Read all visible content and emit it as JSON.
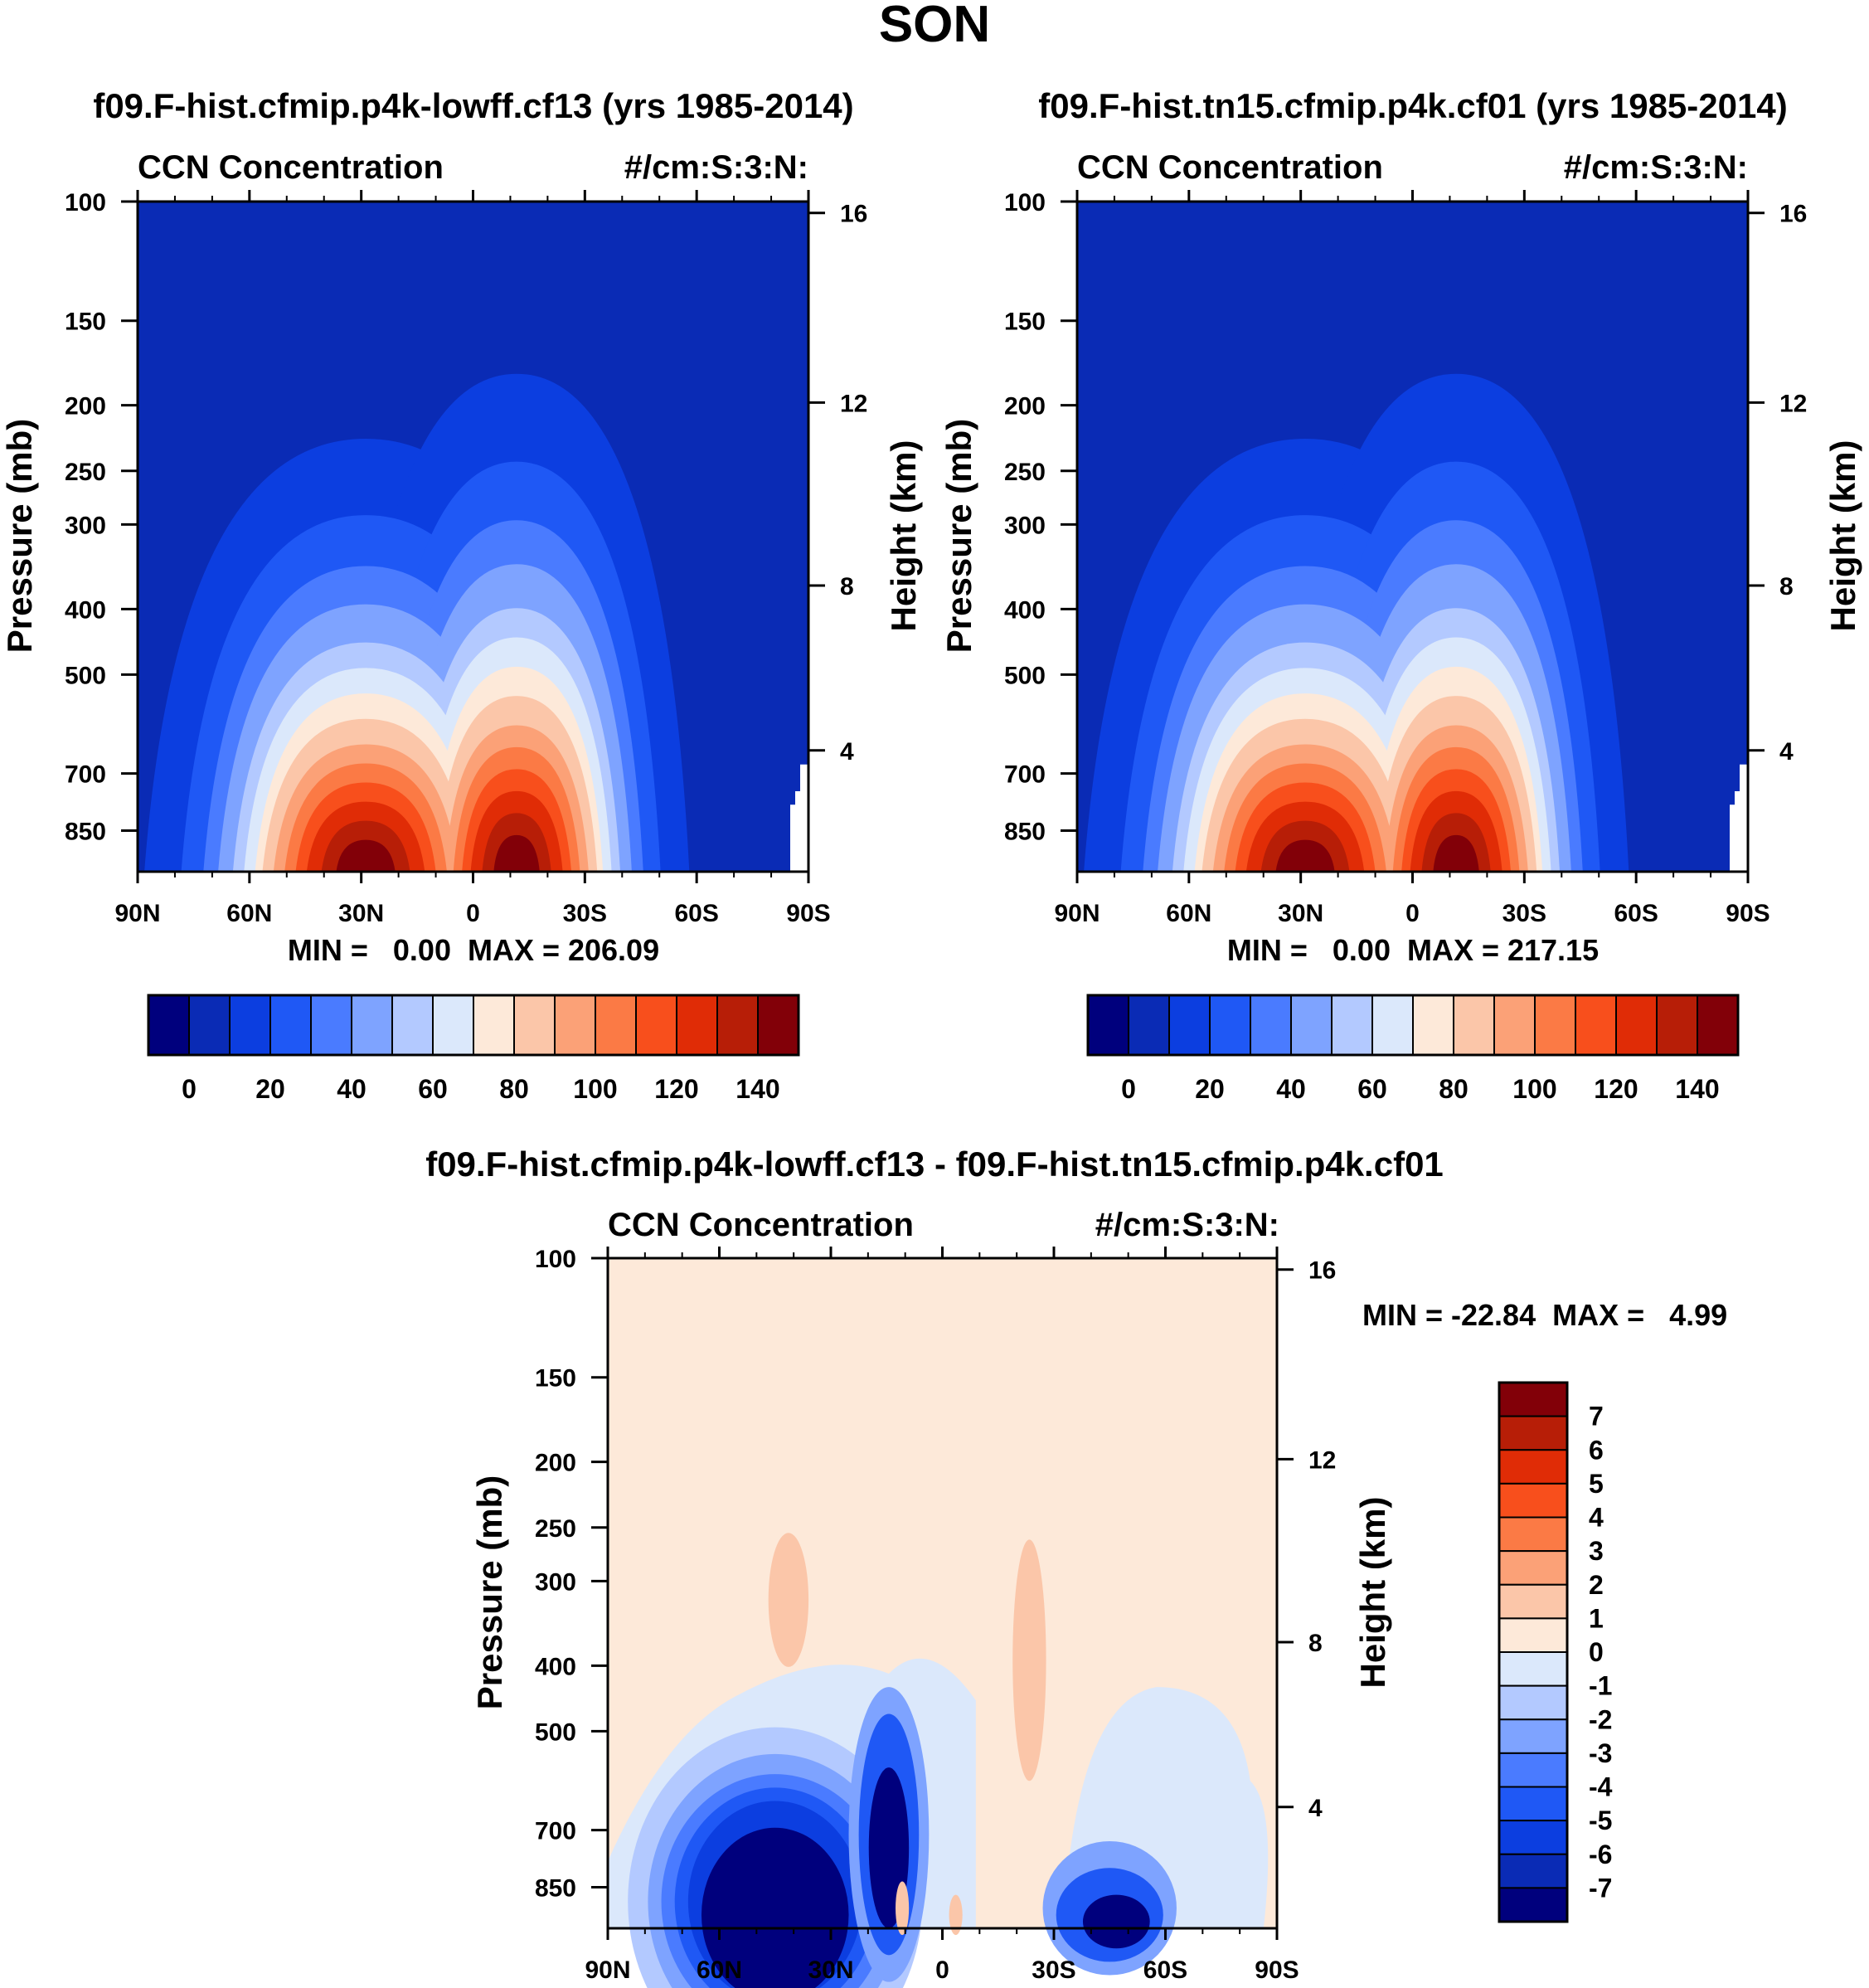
{
  "figure_title": "SON",
  "colors": {
    "fill_low": "#0a2bb5",
    "fill_bg_diff": "#fde9d9",
    "frame": "#000000"
  },
  "panels": [
    {
      "title": "f09.F-hist.cfmip.p4k-lowff.cf13 (yrs 1985-2014)",
      "left_string": "CCN Concentration",
      "right_string": "#/cm:S:3:N:",
      "stats": "MIN =   0.00  MAX = 206.09",
      "ylabel": "Pressure (mb)",
      "ylabel_right": "Height (km)"
    },
    {
      "title": "f09.F-hist.tn15.cfmip.p4k.cf01 (yrs 1985-2014)",
      "left_string": "CCN Concentration",
      "right_string": "#/cm:S:3:N:",
      "stats": "MIN =   0.00  MAX = 217.15",
      "ylabel": "Pressure (mb)",
      "ylabel_right": "Height (km)"
    },
    {
      "title": "f09.F-hist.cfmip.p4k-lowff.cf13 - f09.F-hist.tn15.cfmip.p4k.cf01",
      "left_string": "CCN Concentration",
      "right_string": "#/cm:S:3:N:",
      "stats": "MIN = -22.84  MAX =   4.99",
      "ylabel": "Pressure (mb)",
      "ylabel_right": "Height (km)"
    }
  ],
  "chart_data": [
    {
      "type": "contour",
      "panel": 0,
      "x_ticks": [
        "90N",
        "60N",
        "30N",
        "0",
        "30S",
        "60S",
        "90S"
      ],
      "y_ticks_pressure": [
        100,
        150,
        200,
        250,
        300,
        400,
        500,
        700,
        850
      ],
      "y_ticks_height_km": [
        16,
        12,
        8,
        4
      ],
      "y_scale": "log pressure",
      "min": 0.0,
      "max": 206.09,
      "colorbar": {
        "levels": [
          0,
          10,
          20,
          30,
          40,
          50,
          60,
          70,
          80,
          90,
          100,
          110,
          120,
          130,
          140
        ],
        "labels": [
          "0",
          "20",
          "40",
          "60",
          "80",
          "100",
          "120",
          "140"
        ],
        "colors": [
          "#00007d",
          "#0a2bb5",
          "#0c3ee0",
          "#1f58f5",
          "#4a7bff",
          "#7ea3ff",
          "#b3c9ff",
          "#dbe8fb",
          "#fde9d9",
          "#fbc6a9",
          "#fba177",
          "#fb7a45",
          "#f84f1c",
          "#e02c06",
          "#b71e07",
          "#820008"
        ]
      }
    },
    {
      "type": "contour",
      "panel": 1,
      "x_ticks": [
        "90N",
        "60N",
        "30N",
        "0",
        "30S",
        "60S",
        "90S"
      ],
      "y_ticks_pressure": [
        100,
        150,
        200,
        250,
        300,
        400,
        500,
        700,
        850
      ],
      "y_ticks_height_km": [
        16,
        12,
        8,
        4
      ],
      "y_scale": "log pressure",
      "min": 0.0,
      "max": 217.15,
      "colorbar": {
        "levels": [
          0,
          10,
          20,
          30,
          40,
          50,
          60,
          70,
          80,
          90,
          100,
          110,
          120,
          130,
          140
        ],
        "labels": [
          "0",
          "20",
          "40",
          "60",
          "80",
          "100",
          "120",
          "140"
        ],
        "colors": [
          "#00007d",
          "#0a2bb5",
          "#0c3ee0",
          "#1f58f5",
          "#4a7bff",
          "#7ea3ff",
          "#b3c9ff",
          "#dbe8fb",
          "#fde9d9",
          "#fbc6a9",
          "#fba177",
          "#fb7a45",
          "#f84f1c",
          "#e02c06",
          "#b71e07",
          "#820008"
        ]
      }
    },
    {
      "type": "contour",
      "panel": 2,
      "x_ticks": [
        "90N",
        "60N",
        "30N",
        "0",
        "30S",
        "60S",
        "90S"
      ],
      "y_ticks_pressure": [
        100,
        150,
        200,
        250,
        300,
        400,
        500,
        700,
        850
      ],
      "y_ticks_height_km": [
        16,
        12,
        8,
        4
      ],
      "y_scale": "log pressure",
      "min": -22.84,
      "max": 4.99,
      "colorbar": {
        "orientation": "vertical",
        "labels": [
          "7",
          "6",
          "5",
          "4",
          "3",
          "2",
          "1",
          "0",
          "-1",
          "-2",
          "-3",
          "-4",
          "-5",
          "-6",
          "-7"
        ],
        "colors": [
          "#820008",
          "#b71e07",
          "#e02c06",
          "#f84f1c",
          "#fb7a45",
          "#fba177",
          "#fbc6a9",
          "#fde9d9",
          "#dbe8fb",
          "#b3c9ff",
          "#7ea3ff",
          "#4a7bff",
          "#1f58f5",
          "#0c3ee0",
          "#0a2bb5",
          "#00007d"
        ]
      }
    }
  ]
}
